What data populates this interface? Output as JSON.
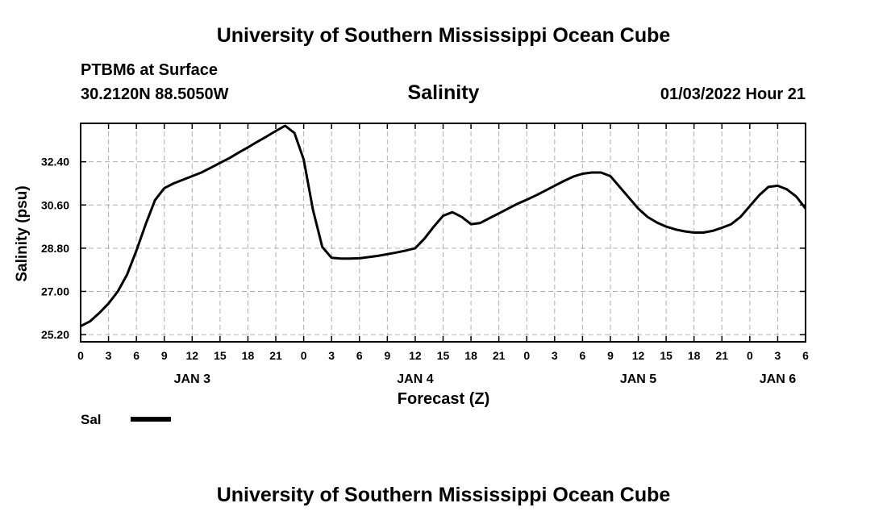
{
  "header": {
    "title": "University of Southern Mississippi Ocean Cube",
    "station": "PTBM6 at Surface",
    "location": "30.2120N  88.5050W",
    "variable": "Salinity",
    "datetime": "01/03/2022 Hour 21"
  },
  "footer": {
    "title": "University of Southern Mississippi Ocean Cube"
  },
  "chart_data": {
    "type": "line",
    "title": "Salinity",
    "xlabel": "Forecast (Z)",
    "ylabel": "Salinity (psu)",
    "xlim": [
      0,
      78
    ],
    "ylim": [
      24.9,
      34.0
    ],
    "grid": true,
    "x_ticks": [
      {
        "x": 0,
        "label": "0"
      },
      {
        "x": 3,
        "label": "3"
      },
      {
        "x": 6,
        "label": "6"
      },
      {
        "x": 9,
        "label": "9"
      },
      {
        "x": 12,
        "label": "12"
      },
      {
        "x": 15,
        "label": "15"
      },
      {
        "x": 18,
        "label": "18"
      },
      {
        "x": 21,
        "label": "21"
      },
      {
        "x": 24,
        "label": "0"
      },
      {
        "x": 27,
        "label": "3"
      },
      {
        "x": 30,
        "label": "6"
      },
      {
        "x": 33,
        "label": "9"
      },
      {
        "x": 36,
        "label": "12"
      },
      {
        "x": 39,
        "label": "15"
      },
      {
        "x": 42,
        "label": "18"
      },
      {
        "x": 45,
        "label": "21"
      },
      {
        "x": 48,
        "label": "0"
      },
      {
        "x": 51,
        "label": "3"
      },
      {
        "x": 54,
        "label": "6"
      },
      {
        "x": 57,
        "label": "9"
      },
      {
        "x": 60,
        "label": "12"
      },
      {
        "x": 63,
        "label": "15"
      },
      {
        "x": 66,
        "label": "18"
      },
      {
        "x": 69,
        "label": "21"
      },
      {
        "x": 72,
        "label": "0"
      },
      {
        "x": 75,
        "label": "3"
      },
      {
        "x": 78,
        "label": "6"
      }
    ],
    "day_labels": [
      {
        "x": 12,
        "label": "JAN 3"
      },
      {
        "x": 36,
        "label": "JAN 4"
      },
      {
        "x": 60,
        "label": "JAN 5"
      },
      {
        "x": 75,
        "label": "JAN 6"
      }
    ],
    "y_ticks": [
      {
        "y": 25.2,
        "label": "25.20"
      },
      {
        "y": 27.0,
        "label": "27.00"
      },
      {
        "y": 28.8,
        "label": "28.80"
      },
      {
        "y": 30.6,
        "label": "30.60"
      },
      {
        "y": 32.4,
        "label": "32.40"
      }
    ],
    "series": [
      {
        "name": "Sal",
        "x": [
          0,
          1,
          2,
          3,
          4,
          5,
          6,
          7,
          8,
          9,
          10,
          11,
          12,
          13,
          14,
          15,
          16,
          17,
          18,
          19,
          20,
          21,
          22,
          23,
          24,
          25,
          26,
          27,
          28,
          29,
          30,
          31,
          32,
          33,
          34,
          35,
          36,
          37,
          38,
          39,
          40,
          41,
          42,
          43,
          44,
          45,
          46,
          47,
          48,
          49,
          50,
          51,
          52,
          53,
          54,
          55,
          56,
          57,
          58,
          59,
          60,
          61,
          62,
          63,
          64,
          65,
          66,
          67,
          68,
          69,
          70,
          71,
          72,
          73,
          74,
          75,
          76,
          77,
          78
        ],
        "values": [
          25.55,
          25.75,
          26.1,
          26.5,
          27.0,
          27.7,
          28.7,
          29.8,
          30.8,
          31.3,
          31.5,
          31.65,
          31.8,
          31.95,
          32.15,
          32.35,
          32.55,
          32.78,
          33.0,
          33.23,
          33.45,
          33.68,
          33.9,
          33.6,
          32.5,
          30.4,
          28.85,
          28.4,
          28.37,
          28.37,
          28.38,
          28.43,
          28.48,
          28.55,
          28.62,
          28.7,
          28.8,
          29.2,
          29.7,
          30.15,
          30.3,
          30.1,
          29.8,
          29.85,
          30.05,
          30.25,
          30.45,
          30.65,
          30.82,
          31.0,
          31.2,
          31.4,
          31.6,
          31.78,
          31.9,
          31.95,
          31.95,
          31.8,
          31.35,
          30.9,
          30.45,
          30.1,
          29.87,
          29.7,
          29.58,
          29.5,
          29.45,
          29.45,
          29.52,
          29.65,
          29.8,
          30.1,
          30.55,
          31.0,
          31.35,
          31.4,
          31.25,
          30.95,
          30.45
        ]
      }
    ],
    "legend": {
      "label": "Sal",
      "position": "bottom-left"
    }
  }
}
